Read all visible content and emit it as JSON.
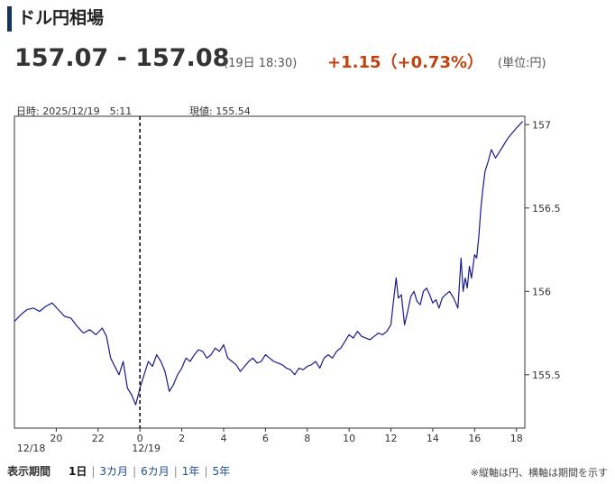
{
  "header": {
    "title": "ドル円相場",
    "price": "157.07 - 157.08",
    "time": "(19日 18:30)",
    "change": "+1.15（+0.73%）",
    "unit": "(単位:円)",
    "accent_color": "#17365f",
    "change_color": "#c2410c"
  },
  "info": {
    "datetime": "日時: 2025/12/19　5:11",
    "current": "現値: 155.54"
  },
  "periods": {
    "label": "表示期間",
    "options": [
      "1日",
      "3カ月",
      "6カ月",
      "1年",
      "5年"
    ],
    "active": "1日"
  },
  "note": "※縦軸は円、横軸は期間を示す",
  "chart_data": {
    "type": "line",
    "title": "",
    "xlabel": "",
    "ylabel": "",
    "line_color": "#1a1a8c",
    "grid": false,
    "x_unit": "hours since 2025/12/18 18:00",
    "xlim": [
      0,
      24.4
    ],
    "ylim": [
      155.18,
      157.05
    ],
    "y_ticks": [
      155.5,
      156,
      156.5,
      157
    ],
    "y_tick_labels": [
      "155.5",
      "156",
      "156.5",
      "157"
    ],
    "x_ticks": [
      2,
      4,
      6,
      8,
      10,
      12,
      14,
      16,
      18,
      20,
      22,
      24
    ],
    "x_tick_labels": [
      "20",
      "22",
      "0",
      "2",
      "4",
      "6",
      "8",
      "10",
      "12",
      "14",
      "16",
      "18"
    ],
    "date_labels": [
      {
        "x": 0.8,
        "text": "12/18"
      },
      {
        "x": 6.3,
        "text": "12/19"
      }
    ],
    "cursor_x": 6.0,
    "series": [
      {
        "values": [
          [
            0,
            155.82
          ],
          [
            0.3,
            155.86
          ],
          [
            0.6,
            155.89
          ],
          [
            0.9,
            155.9
          ],
          [
            1.2,
            155.88
          ],
          [
            1.5,
            155.91
          ],
          [
            1.8,
            155.93
          ],
          [
            2.1,
            155.89
          ],
          [
            2.4,
            155.85
          ],
          [
            2.7,
            155.84
          ],
          [
            3.0,
            155.79
          ],
          [
            3.3,
            155.75
          ],
          [
            3.6,
            155.77
          ],
          [
            3.9,
            155.74
          ],
          [
            4.2,
            155.78
          ],
          [
            4.4,
            155.73
          ],
          [
            4.6,
            155.6
          ],
          [
            4.8,
            155.55
          ],
          [
            5.0,
            155.5
          ],
          [
            5.2,
            155.58
          ],
          [
            5.4,
            155.42
          ],
          [
            5.6,
            155.38
          ],
          [
            5.8,
            155.32
          ],
          [
            6.0,
            155.42
          ],
          [
            6.2,
            155.5
          ],
          [
            6.4,
            155.58
          ],
          [
            6.6,
            155.55
          ],
          [
            6.8,
            155.62
          ],
          [
            7.0,
            155.58
          ],
          [
            7.2,
            155.52
          ],
          [
            7.4,
            155.4
          ],
          [
            7.6,
            155.44
          ],
          [
            7.8,
            155.5
          ],
          [
            8.0,
            155.54
          ],
          [
            8.2,
            155.6
          ],
          [
            8.4,
            155.58
          ],
          [
            8.6,
            155.62
          ],
          [
            8.8,
            155.65
          ],
          [
            9.0,
            155.64
          ],
          [
            9.2,
            155.6
          ],
          [
            9.4,
            155.62
          ],
          [
            9.6,
            155.66
          ],
          [
            9.8,
            155.64
          ],
          [
            10.0,
            155.68
          ],
          [
            10.2,
            155.6
          ],
          [
            10.4,
            155.58
          ],
          [
            10.6,
            155.56
          ],
          [
            10.8,
            155.52
          ],
          [
            11.0,
            155.55
          ],
          [
            11.2,
            155.58
          ],
          [
            11.4,
            155.6
          ],
          [
            11.6,
            155.57
          ],
          [
            11.8,
            155.58
          ],
          [
            12.0,
            155.62
          ],
          [
            12.2,
            155.6
          ],
          [
            12.4,
            155.58
          ],
          [
            12.6,
            155.57
          ],
          [
            12.8,
            155.56
          ],
          [
            13.0,
            155.54
          ],
          [
            13.2,
            155.53
          ],
          [
            13.4,
            155.5
          ],
          [
            13.6,
            155.54
          ],
          [
            13.8,
            155.53
          ],
          [
            14.0,
            155.55
          ],
          [
            14.2,
            155.56
          ],
          [
            14.4,
            155.58
          ],
          [
            14.6,
            155.54
          ],
          [
            14.8,
            155.6
          ],
          [
            15.0,
            155.62
          ],
          [
            15.2,
            155.6
          ],
          [
            15.4,
            155.64
          ],
          [
            15.6,
            155.66
          ],
          [
            15.8,
            155.7
          ],
          [
            16.0,
            155.74
          ],
          [
            16.2,
            155.72
          ],
          [
            16.4,
            155.76
          ],
          [
            16.6,
            155.73
          ],
          [
            16.8,
            155.72
          ],
          [
            17.0,
            155.71
          ],
          [
            17.2,
            155.73
          ],
          [
            17.4,
            155.75
          ],
          [
            17.6,
            155.74
          ],
          [
            17.8,
            155.76
          ],
          [
            18.0,
            155.8
          ],
          [
            18.1,
            155.92
          ],
          [
            18.25,
            156.08
          ],
          [
            18.35,
            155.96
          ],
          [
            18.5,
            155.98
          ],
          [
            18.65,
            155.8
          ],
          [
            18.8,
            155.88
          ],
          [
            18.95,
            155.97
          ],
          [
            19.1,
            156.0
          ],
          [
            19.25,
            155.94
          ],
          [
            19.4,
            155.92
          ],
          [
            19.55,
            156.0
          ],
          [
            19.7,
            156.02
          ],
          [
            19.85,
            155.98
          ],
          [
            20.0,
            155.93
          ],
          [
            20.15,
            155.95
          ],
          [
            20.3,
            155.9
          ],
          [
            20.45,
            155.96
          ],
          [
            20.6,
            155.98
          ],
          [
            20.8,
            156.0
          ],
          [
            21.0,
            155.96
          ],
          [
            21.2,
            155.9
          ],
          [
            21.35,
            156.2
          ],
          [
            21.45,
            156.0
          ],
          [
            21.55,
            156.08
          ],
          [
            21.65,
            156.02
          ],
          [
            21.75,
            156.15
          ],
          [
            21.85,
            156.08
          ],
          [
            22.0,
            156.22
          ],
          [
            22.1,
            156.2
          ],
          [
            22.2,
            156.33
          ],
          [
            22.3,
            156.5
          ],
          [
            22.4,
            156.62
          ],
          [
            22.5,
            156.72
          ],
          [
            22.65,
            156.78
          ],
          [
            22.8,
            156.85
          ],
          [
            23.0,
            156.8
          ],
          [
            23.2,
            156.84
          ],
          [
            23.4,
            156.88
          ],
          [
            23.6,
            156.92
          ],
          [
            23.8,
            156.95
          ],
          [
            24.0,
            156.98
          ],
          [
            24.15,
            157.0
          ],
          [
            24.3,
            157.02
          ]
        ]
      }
    ]
  }
}
